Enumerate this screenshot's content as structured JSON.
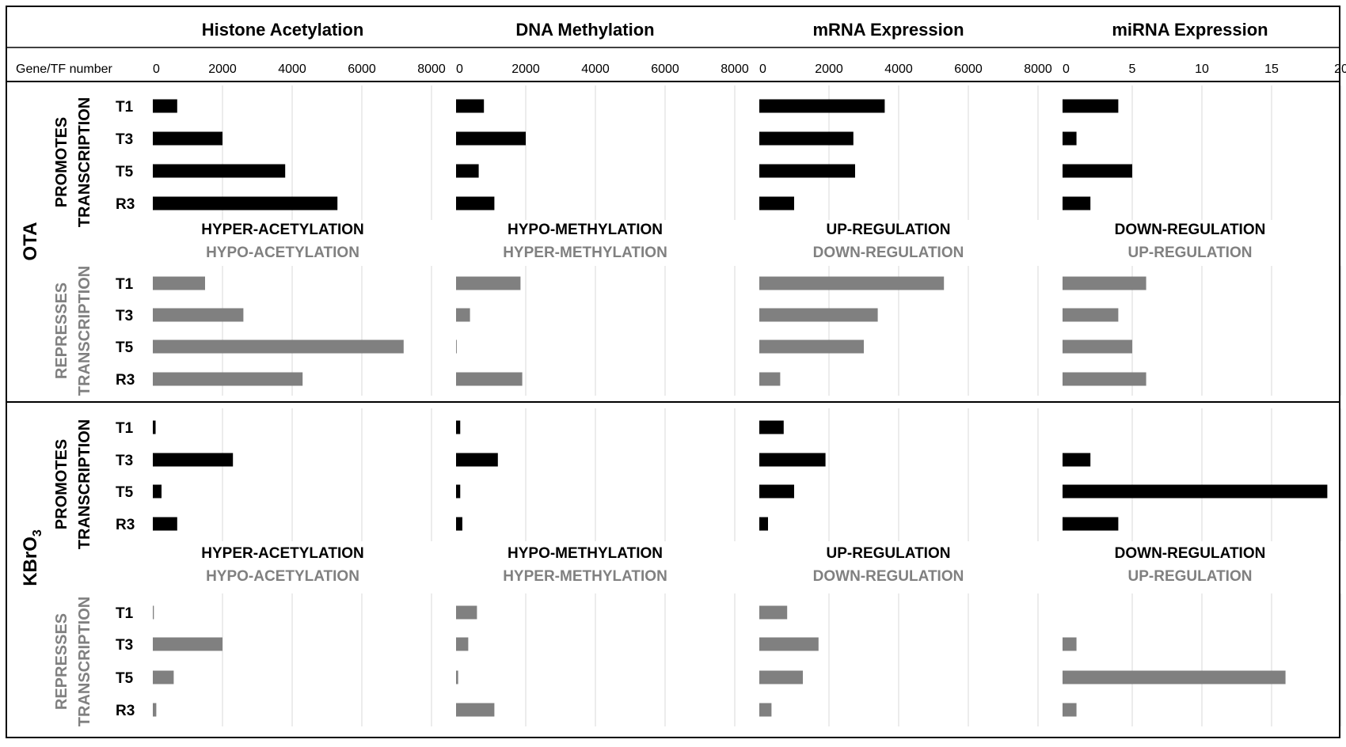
{
  "chart_data": {
    "type": "bar",
    "orientation": "horizontal",
    "axis_header_label": "Gene/TF number",
    "columns": [
      {
        "title": "Histone Acetylation",
        "xlim": [
          0,
          8000
        ],
        "ticks": [
          "0",
          "2000",
          "4000",
          "6000",
          "8000"
        ],
        "promotes_label": "HYPER-ACETYLATION",
        "represses_label": "HYPO-ACETYLATION"
      },
      {
        "title": "DNA Methylation",
        "xlim": [
          0,
          8000
        ],
        "ticks": [
          "0",
          "2000",
          "4000",
          "6000",
          "8000"
        ],
        "promotes_label": "HYPO-METHYLATION",
        "represses_label": "HYPER-METHYLATION"
      },
      {
        "title": "mRNA Expression",
        "xlim": [
          0,
          8000
        ],
        "ticks": [
          "0",
          "2000",
          "4000",
          "6000",
          "8000"
        ],
        "promotes_label": "UP-REGULATION",
        "represses_label": "DOWN-REGULATION"
      },
      {
        "title": "miRNA Expression",
        "xlim": [
          0,
          20
        ],
        "ticks": [
          "0",
          "5",
          "10",
          "15",
          "20"
        ],
        "promotes_label": "DOWN-REGULATION",
        "represses_label": "UP-REGULATION"
      }
    ],
    "categories": [
      "T1",
      "T3",
      "T5",
      "R3"
    ],
    "groups": [
      {
        "name": "OTA",
        "name_sub": "",
        "promotes": {
          "label_line1": "PROMOTES",
          "label_line2": "TRANSCRIPTION",
          "values": [
            [
              700,
              2000,
              3800,
              5300
            ],
            [
              800,
              2000,
              650,
              1100
            ],
            [
              3600,
              2700,
              2750,
              1000
            ],
            [
              4,
              1,
              5,
              2
            ]
          ]
        },
        "represses": {
          "label_line1": "REPRESSES",
          "label_line2": "TRANSCRIPTION",
          "values": [
            [
              1500,
              2600,
              7200,
              4300
            ],
            [
              1850,
              400,
              20,
              1900
            ],
            [
              5300,
              3400,
              3000,
              600
            ],
            [
              6,
              4,
              5,
              6
            ]
          ]
        }
      },
      {
        "name": "KBrO",
        "name_sub": "3",
        "promotes": {
          "label_line1": "PROMOTES",
          "label_line2": "TRANSCRIPTION",
          "values": [
            [
              80,
              2300,
              250,
              700
            ],
            [
              120,
              1200,
              120,
              180
            ],
            [
              700,
              1900,
              1000,
              250
            ],
            [
              0,
              2,
              19,
              4
            ]
          ]
        },
        "represses": {
          "label_line1": "REPRESSES",
          "label_line2": "TRANSCRIPTION",
          "values": [
            [
              30,
              2000,
              600,
              100
            ],
            [
              600,
              350,
              60,
              1100
            ],
            [
              800,
              1700,
              1250,
              350
            ],
            [
              0,
              1,
              16,
              1
            ]
          ]
        }
      }
    ],
    "colors": {
      "promotes": "#000000",
      "represses": "#808080",
      "grid": "#d9d9d9",
      "border": "#000000"
    }
  }
}
